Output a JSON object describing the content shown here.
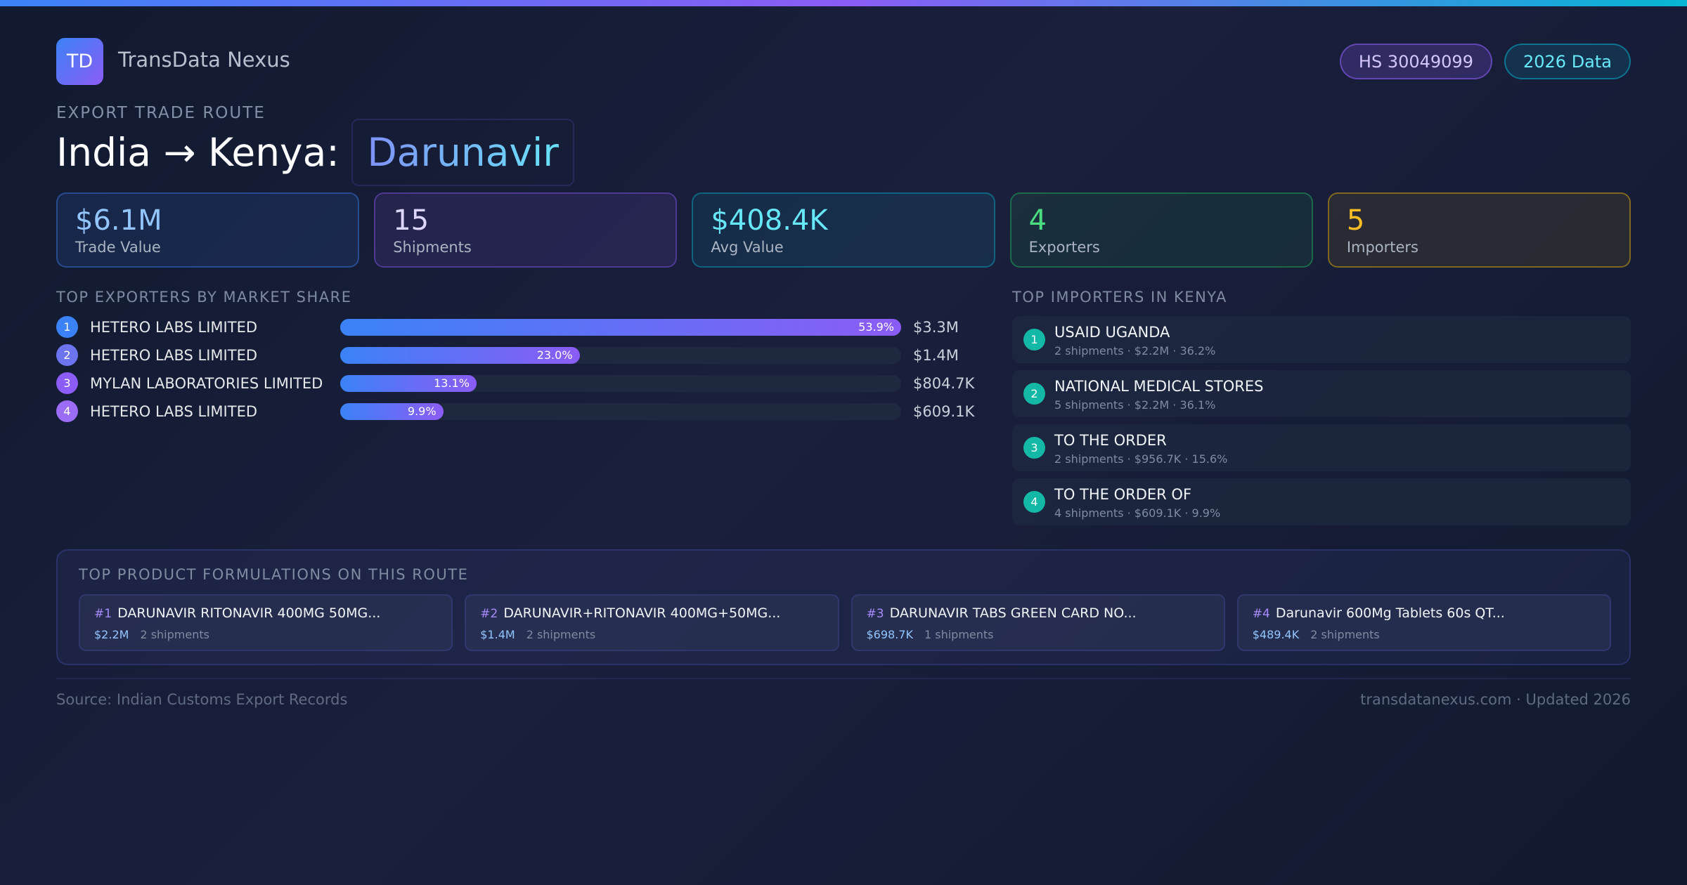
{
  "header": {
    "logo": "TD",
    "brand": "TransData Nexus",
    "badges": [
      "HS 30049099",
      "2026 Data"
    ]
  },
  "route": {
    "label": "EXPORT TRADE ROUTE",
    "title": "India → Kenya:",
    "product": "Darunavir"
  },
  "stats": [
    {
      "value": "$6.1M",
      "label": "Trade Value"
    },
    {
      "value": "15",
      "label": "Shipments"
    },
    {
      "value": "$408.4K",
      "label": "Avg Value"
    },
    {
      "value": "4",
      "label": "Exporters"
    },
    {
      "value": "5",
      "label": "Importers"
    }
  ],
  "exporters": {
    "title": "TOP EXPORTERS BY MARKET SHARE",
    "items": [
      {
        "rank": 1,
        "name": "HETERO LABS LIMITED",
        "share": 53.9,
        "share_label": "53.9%",
        "value": "$3.3M"
      },
      {
        "rank": 2,
        "name": "HETERO LABS LIMITED",
        "share": 23.0,
        "share_label": "23.0%",
        "value": "$1.4M"
      },
      {
        "rank": 3,
        "name": "MYLAN LABORATORIES LIMITED",
        "share": 13.1,
        "share_label": "13.1%",
        "value": "$804.7K"
      },
      {
        "rank": 4,
        "name": "HETERO LABS LIMITED",
        "share": 9.9,
        "share_label": "9.9%",
        "value": "$609.1K"
      }
    ]
  },
  "importers": {
    "title": "TOP IMPORTERS IN KENYA",
    "items": [
      {
        "rank": 1,
        "name": "USAID UGANDA",
        "detail": "2 shipments · $2.2M · 36.2%"
      },
      {
        "rank": 2,
        "name": "NATIONAL MEDICAL STORES",
        "detail": "5 shipments · $2.2M · 36.1%"
      },
      {
        "rank": 3,
        "name": "TO THE ORDER",
        "detail": "2 shipments · $956.7K · 15.6%"
      },
      {
        "rank": 4,
        "name": "TO THE ORDER OF",
        "detail": "4 shipments · $609.1K · 9.9%"
      }
    ]
  },
  "products": {
    "title": "TOP PRODUCT FORMULATIONS ON THIS ROUTE",
    "items": [
      {
        "rank": "#1",
        "name": "DARUNAVIR RITONAVIR 400MG 50MG...",
        "value": "$2.2M",
        "shipments": "2 shipments"
      },
      {
        "rank": "#2",
        "name": "DARUNAVIR+RITONAVIR 400MG+50MG...",
        "value": "$1.4M",
        "shipments": "2 shipments"
      },
      {
        "rank": "#3",
        "name": "DARUNAVIR TABS GREEN CARD NO...",
        "value": "$698.7K",
        "shipments": "1 shipments"
      },
      {
        "rank": "#4",
        "name": "Darunavir 600Mg Tablets 60s QT...",
        "value": "$489.4K",
        "shipments": "2 shipments"
      }
    ]
  },
  "footer": {
    "source": "Source: Indian Customs Export Records",
    "site": "transdatanexus.com · Updated 2026"
  }
}
